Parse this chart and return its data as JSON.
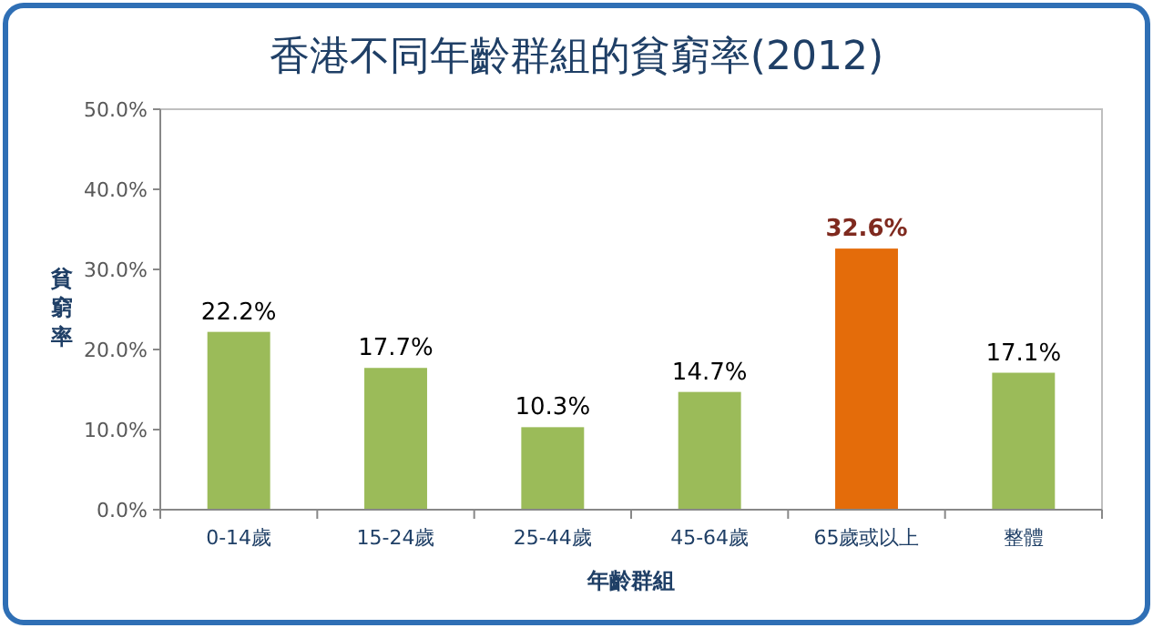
{
  "chart_data": {
    "type": "bar",
    "title": "香港不同年齡群組的貧窮率(2012)",
    "xlabel": "年齡群組",
    "ylabel": "貧窮率",
    "categories": [
      "0-14歲",
      "15-24歲",
      "25-44歲",
      "45-64歲",
      "65歲或以上",
      "整體"
    ],
    "values": [
      22.2,
      17.7,
      10.3,
      14.7,
      32.6,
      17.1
    ],
    "colors": [
      "#9bbb59",
      "#9bbb59",
      "#9bbb59",
      "#9bbb59",
      "#e46c0a",
      "#9bbb59"
    ],
    "value_labels": [
      "22.2%",
      "17.7%",
      "10.3%",
      "14.7%",
      "32.6%",
      "17.1%"
    ],
    "ylim": [
      0,
      50
    ],
    "yticks": [
      {
        "value": 0,
        "label": "0.0%"
      },
      {
        "value": 10,
        "label": "10.0%"
      },
      {
        "value": 20,
        "label": "20.0%"
      },
      {
        "value": 30,
        "label": "30.0%"
      },
      {
        "value": 40,
        "label": "40.0%"
      },
      {
        "value": 50,
        "label": "50.0%"
      }
    ],
    "grid": false
  }
}
